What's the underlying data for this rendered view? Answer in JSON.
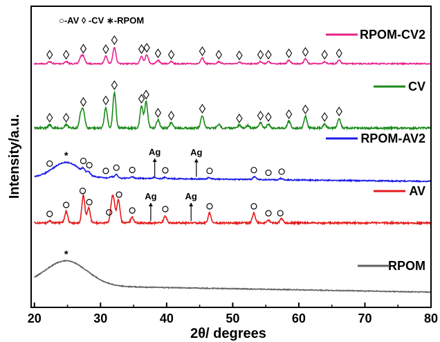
{
  "chart_data": {
    "type": "line",
    "title": "",
    "xlabel": "2θ/ degrees",
    "ylabel": "Intensity/a.u.",
    "xlim": [
      19.5,
      80
    ],
    "x_ticks": [
      "20",
      "30",
      "40",
      "50",
      "60",
      "70",
      "80"
    ],
    "top_legend": "○-AV  ◊ -CV  ∗-RPOM",
    "series": [
      {
        "name": "RPOM-CV2",
        "color": "#e8208a",
        "peaks": [
          {
            "x": 22.3,
            "h": 3
          },
          {
            "x": 24.8,
            "h": 3
          },
          {
            "x": 27.0,
            "h": 8
          },
          {
            "x": 27.4,
            "h": 10
          },
          {
            "x": 30.8,
            "h": 11
          },
          {
            "x": 32.1,
            "h": 24
          },
          {
            "x": 36.2,
            "h": 11
          },
          {
            "x": 37.0,
            "h": 13
          },
          {
            "x": 38.7,
            "h": 5
          },
          {
            "x": 40.7,
            "h": 3
          },
          {
            "x": 45.4,
            "h": 8
          },
          {
            "x": 47.9,
            "h": 3
          },
          {
            "x": 51.0,
            "h": 2
          },
          {
            "x": 54.2,
            "h": 3
          },
          {
            "x": 55.4,
            "h": 3
          },
          {
            "x": 58.5,
            "h": 5
          },
          {
            "x": 61.0,
            "h": 7
          },
          {
            "x": 63.9,
            "h": 3
          },
          {
            "x": 66.1,
            "h": 5
          }
        ],
        "markers": [
          {
            "type": "diamond",
            "x": 22.3
          },
          {
            "type": "diamond",
            "x": 24.8
          },
          {
            "type": "diamond",
            "x": 27.4
          },
          {
            "type": "diamond",
            "x": 30.8
          },
          {
            "type": "diamond",
            "x": 32.1
          },
          {
            "type": "diamond",
            "x": 36.2
          },
          {
            "type": "diamond",
            "x": 37.0
          },
          {
            "type": "diamond",
            "x": 38.7
          },
          {
            "type": "diamond",
            "x": 40.7
          },
          {
            "type": "diamond",
            "x": 45.4
          },
          {
            "type": "diamond",
            "x": 47.9
          },
          {
            "type": "diamond",
            "x": 51.0
          },
          {
            "type": "diamond",
            "x": 54.2
          },
          {
            "type": "diamond",
            "x": 55.4
          },
          {
            "type": "diamond",
            "x": 58.5
          },
          {
            "type": "diamond",
            "x": 61.0
          },
          {
            "type": "diamond",
            "x": 63.9
          },
          {
            "type": "diamond",
            "x": 66.1
          }
        ]
      },
      {
        "name": "CV",
        "color": "#1a8a1a",
        "peaks": [
          {
            "x": 22.3,
            "h": 5
          },
          {
            "x": 24.8,
            "h": 5
          },
          {
            "x": 27.0,
            "h": 18
          },
          {
            "x": 27.4,
            "h": 24
          },
          {
            "x": 30.8,
            "h": 30
          },
          {
            "x": 32.1,
            "h": 52
          },
          {
            "x": 36.2,
            "h": 32
          },
          {
            "x": 36.9,
            "h": 38
          },
          {
            "x": 38.7,
            "h": 12
          },
          {
            "x": 40.7,
            "h": 8
          },
          {
            "x": 45.4,
            "h": 18
          },
          {
            "x": 47.9,
            "h": 5
          },
          {
            "x": 51.0,
            "h": 4
          },
          {
            "x": 52.3,
            "h": 4
          },
          {
            "x": 54.2,
            "h": 8
          },
          {
            "x": 55.4,
            "h": 6
          },
          {
            "x": 58.5,
            "h": 10
          },
          {
            "x": 61.0,
            "h": 17
          },
          {
            "x": 63.9,
            "h": 6
          },
          {
            "x": 66.1,
            "h": 14
          }
        ],
        "markers": [
          {
            "type": "diamond",
            "x": 22.3
          },
          {
            "type": "diamond",
            "x": 24.8
          },
          {
            "type": "diamond",
            "x": 27.4
          },
          {
            "type": "diamond",
            "x": 30.8
          },
          {
            "type": "diamond",
            "x": 32.1
          },
          {
            "type": "diamond",
            "x": 36.2
          },
          {
            "type": "diamond",
            "x": 36.9
          },
          {
            "type": "diamond",
            "x": 38.7
          },
          {
            "type": "diamond",
            "x": 40.7
          },
          {
            "type": "diamond",
            "x": 45.4
          },
          {
            "type": "diamond",
            "x": 51.0
          },
          {
            "type": "diamond",
            "x": 54.2
          },
          {
            "type": "diamond",
            "x": 55.4
          },
          {
            "type": "diamond",
            "x": 58.5
          },
          {
            "type": "diamond",
            "x": 61.0
          },
          {
            "type": "diamond",
            "x": 63.9
          },
          {
            "type": "diamond",
            "x": 66.1
          }
        ]
      },
      {
        "name": "RPOM-AV2",
        "color": "#1a1ae6",
        "peaks": [
          {
            "x": 24.8,
            "h": 22,
            "w": 2.8
          },
          {
            "x": 27.4,
            "h": 5
          },
          {
            "x": 28.2,
            "h": 4
          },
          {
            "x": 31.7,
            "h": 2
          },
          {
            "x": 32.4,
            "h": 5
          },
          {
            "x": 34.8,
            "h": 2
          },
          {
            "x": 38.2,
            "h": 2
          },
          {
            "x": 39.8,
            "h": 2
          },
          {
            "x": 46.4,
            "h": 2
          },
          {
            "x": 53.3,
            "h": 4
          },
          {
            "x": 57.3,
            "h": 2
          }
        ],
        "markers": [
          {
            "type": "circle",
            "x": 22.3
          },
          {
            "type": "star",
            "x": 24.8
          },
          {
            "type": "circle",
            "x": 27.4
          },
          {
            "type": "circle",
            "x": 28.3
          },
          {
            "type": "circle",
            "x": 30.8
          },
          {
            "type": "circle",
            "x": 32.4
          },
          {
            "type": "circle",
            "x": 34.8
          },
          {
            "type": "circle",
            "x": 39.8
          },
          {
            "type": "circle",
            "x": 46.5
          },
          {
            "type": "circle",
            "x": 53.2
          },
          {
            "type": "circle",
            "x": 55.4
          },
          {
            "type": "circle",
            "x": 57.4
          }
        ],
        "annotations": [
          {
            "text": "Ag",
            "x": 38.2
          },
          {
            "text": "Ag",
            "x": 44.5
          }
        ]
      },
      {
        "name": "AV",
        "color": "#e61a1a",
        "peaks": [
          {
            "x": 22.3,
            "h": 3
          },
          {
            "x": 24.8,
            "h": 16
          },
          {
            "x": 27.4,
            "h": 40
          },
          {
            "x": 28.2,
            "h": 22
          },
          {
            "x": 31.7,
            "h": 24
          },
          {
            "x": 32.0,
            "h": 26
          },
          {
            "x": 32.7,
            "h": 34
          },
          {
            "x": 34.8,
            "h": 8
          },
          {
            "x": 39.8,
            "h": 10
          },
          {
            "x": 46.5,
            "h": 14
          },
          {
            "x": 53.2,
            "h": 14
          },
          {
            "x": 55.4,
            "h": 4
          },
          {
            "x": 57.4,
            "h": 6
          }
        ],
        "markers": [
          {
            "type": "circle",
            "x": 22.3
          },
          {
            "type": "circle",
            "x": 24.8
          },
          {
            "type": "circle",
            "x": 27.3
          },
          {
            "type": "circle",
            "x": 28.3
          },
          {
            "type": "circle",
            "x": 31.3
          },
          {
            "type": "circle",
            "x": 32.8
          },
          {
            "type": "circle",
            "x": 34.8
          },
          {
            "type": "circle",
            "x": 39.8
          },
          {
            "type": "circle",
            "x": 46.5
          },
          {
            "type": "circle",
            "x": 53.2
          },
          {
            "type": "circle",
            "x": 55.4
          },
          {
            "type": "circle",
            "x": 57.2
          }
        ],
        "annotations": [
          {
            "text": "Ag",
            "x": 37.6
          },
          {
            "text": "Ag",
            "x": 43.7
          }
        ]
      },
      {
        "name": "RPOM",
        "color": "#606060",
        "peaks": [
          {
            "x": 24.8,
            "h": 36,
            "w": 4.5
          }
        ],
        "markers": [
          {
            "type": "star",
            "x": 24.8
          }
        ]
      }
    ]
  }
}
